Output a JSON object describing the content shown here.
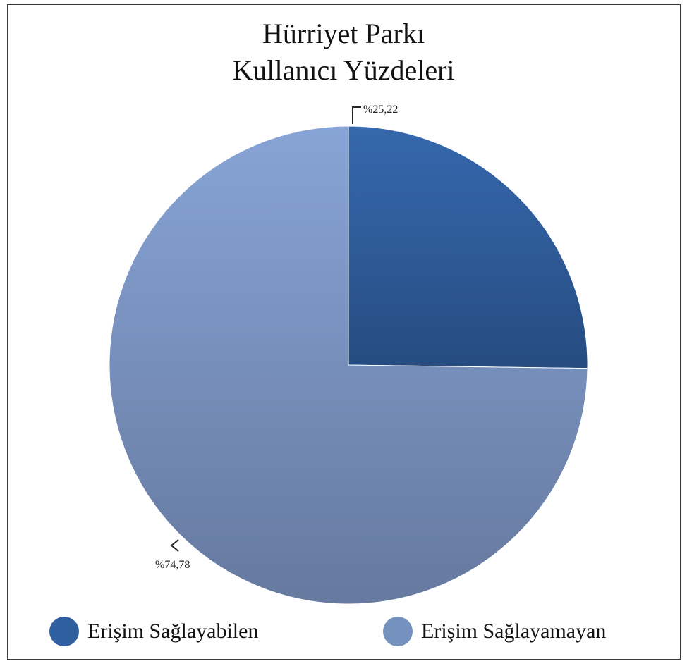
{
  "chart_data": {
    "type": "pie",
    "title": [
      "Hürriyet Parkı",
      "Kullanıcı Yüzdeleri"
    ],
    "slices": [
      {
        "label": "Erişim Sağlayabilen",
        "value": 25.22,
        "data_label": "%25,22",
        "color": "#2e5f9f"
      },
      {
        "label": "Erişim Sağlayamayan",
        "value": 74.78,
        "data_label": "%74,78",
        "color": "#7591bd"
      }
    ],
    "legend_position": "bottom"
  }
}
